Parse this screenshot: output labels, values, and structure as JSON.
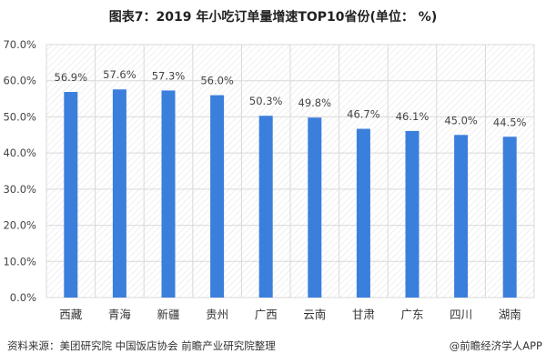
{
  "chart_data": {
    "type": "bar",
    "title": "图表7：2019 年小吃订单量增速TOP10省份(单位： %)",
    "categories": [
      "西藏",
      "青海",
      "新疆",
      "贵州",
      "广西",
      "云南",
      "甘肃",
      "广东",
      "四川",
      "湖南"
    ],
    "values": [
      56.9,
      57.6,
      57.3,
      56.0,
      50.3,
      49.8,
      46.7,
      46.1,
      45.0,
      44.5
    ],
    "data_labels": [
      "56.9%",
      "57.6%",
      "57.3%",
      "56.0%",
      "50.3%",
      "49.8%",
      "46.7%",
      "46.1%",
      "45.0%",
      "44.5%"
    ],
    "ylim": [
      0,
      70
    ],
    "yticks": [
      "0.0%",
      "10.0%",
      "20.0%",
      "30.0%",
      "40.0%",
      "50.0%",
      "60.0%",
      "70.0%"
    ],
    "xlabel": "",
    "ylabel": "",
    "grid": true,
    "bar_color": "#3b7fdc"
  },
  "footer": {
    "source": "资料来源：美团研究院 中国饭店协会   前瞻产业研究院整理",
    "credit": "@前瞻经济学人APP"
  }
}
